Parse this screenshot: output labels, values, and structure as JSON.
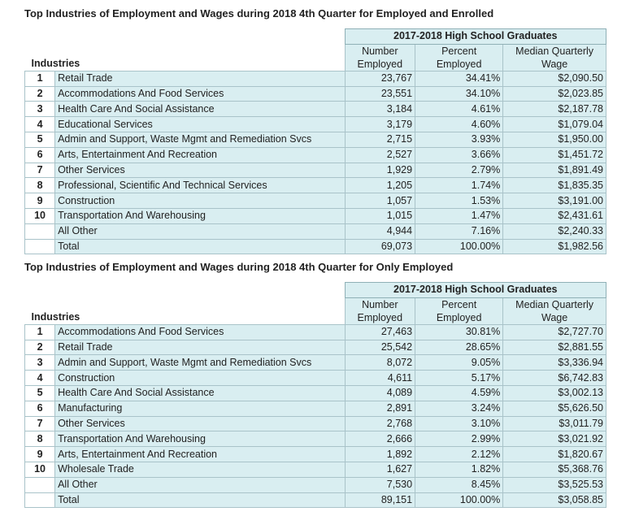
{
  "tables": [
    {
      "title": "Top Industries of Employment and Wages during 2018 4th Quarter for Employed and Enrolled",
      "group_header": "2017-2018 High School Graduates",
      "industries_label": "Industries",
      "col_number": "Number Employed",
      "col_percent": "Percent Employed",
      "col_wage": "Median Quarterly Wage",
      "rows": [
        {
          "rank": "1",
          "name": "Retail Trade",
          "number": "23,767",
          "percent": "34.41%",
          "wage": "$2,090.50"
        },
        {
          "rank": "2",
          "name": "Accommodations And Food Services",
          "number": "23,551",
          "percent": "34.10%",
          "wage": "$2,023.85"
        },
        {
          "rank": "3",
          "name": "Health Care And Social Assistance",
          "number": "3,184",
          "percent": "4.61%",
          "wage": "$2,187.78"
        },
        {
          "rank": "4",
          "name": "Educational Services",
          "number": "3,179",
          "percent": "4.60%",
          "wage": "$1,079.04"
        },
        {
          "rank": "5",
          "name": "Admin and Support, Waste Mgmt and Remediation Svcs",
          "number": "2,715",
          "percent": "3.93%",
          "wage": "$1,950.00"
        },
        {
          "rank": "6",
          "name": "Arts, Entertainment And Recreation",
          "number": "2,527",
          "percent": "3.66%",
          "wage": "$1,451.72"
        },
        {
          "rank": "7",
          "name": "Other Services",
          "number": "1,929",
          "percent": "2.79%",
          "wage": "$1,891.49"
        },
        {
          "rank": "8",
          "name": "Professional, Scientific And Technical Services",
          "number": "1,205",
          "percent": "1.74%",
          "wage": "$1,835.35"
        },
        {
          "rank": "9",
          "name": "Construction",
          "number": "1,057",
          "percent": "1.53%",
          "wage": "$3,191.00"
        },
        {
          "rank": "10",
          "name": "Transportation And Warehousing",
          "number": "1,015",
          "percent": "1.47%",
          "wage": "$2,431.61"
        },
        {
          "rank": "",
          "name": "All Other",
          "number": "4,944",
          "percent": "7.16%",
          "wage": "$2,240.33"
        },
        {
          "rank": "",
          "name": "Total",
          "number": "69,073",
          "percent": "100.00%",
          "wage": "$1,982.56"
        }
      ]
    },
    {
      "title": "Top Industries of Employment and Wages during 2018 4th Quarter for Only Employed",
      "group_header": "2017-2018 High School Graduates",
      "industries_label": "Industries",
      "col_number": "Number Employed",
      "col_percent": "Percent Employed",
      "col_wage": "Median Quarterly Wage",
      "rows": [
        {
          "rank": "1",
          "name": "Accommodations And Food Services",
          "number": "27,463",
          "percent": "30.81%",
          "wage": "$2,727.70"
        },
        {
          "rank": "2",
          "name": "Retail Trade",
          "number": "25,542",
          "percent": "28.65%",
          "wage": "$2,881.55"
        },
        {
          "rank": "3",
          "name": "Admin and Support, Waste Mgmt and Remediation Svcs",
          "number": "8,072",
          "percent": "9.05%",
          "wage": "$3,336.94"
        },
        {
          "rank": "4",
          "name": "Construction",
          "number": "4,611",
          "percent": "5.17%",
          "wage": "$6,742.83"
        },
        {
          "rank": "5",
          "name": "Health Care And Social Assistance",
          "number": "4,089",
          "percent": "4.59%",
          "wage": "$3,002.13"
        },
        {
          "rank": "6",
          "name": "Manufacturing",
          "number": "2,891",
          "percent": "3.24%",
          "wage": "$5,626.50"
        },
        {
          "rank": "7",
          "name": "Other Services",
          "number": "2,768",
          "percent": "3.10%",
          "wage": "$3,011.79"
        },
        {
          "rank": "8",
          "name": "Transportation And Warehousing",
          "number": "2,666",
          "percent": "2.99%",
          "wage": "$3,021.92"
        },
        {
          "rank": "9",
          "name": "Arts, Entertainment And Recreation",
          "number": "1,892",
          "percent": "2.12%",
          "wage": "$1,820.67"
        },
        {
          "rank": "10",
          "name": "Wholesale Trade",
          "number": "1,627",
          "percent": "1.82%",
          "wage": "$5,368.76"
        },
        {
          "rank": "",
          "name": "All Other",
          "number": "7,530",
          "percent": "8.45%",
          "wage": "$3,525.53"
        },
        {
          "rank": "",
          "name": "Total",
          "number": "89,151",
          "percent": "100.00%",
          "wage": "$3,058.85"
        }
      ]
    }
  ]
}
